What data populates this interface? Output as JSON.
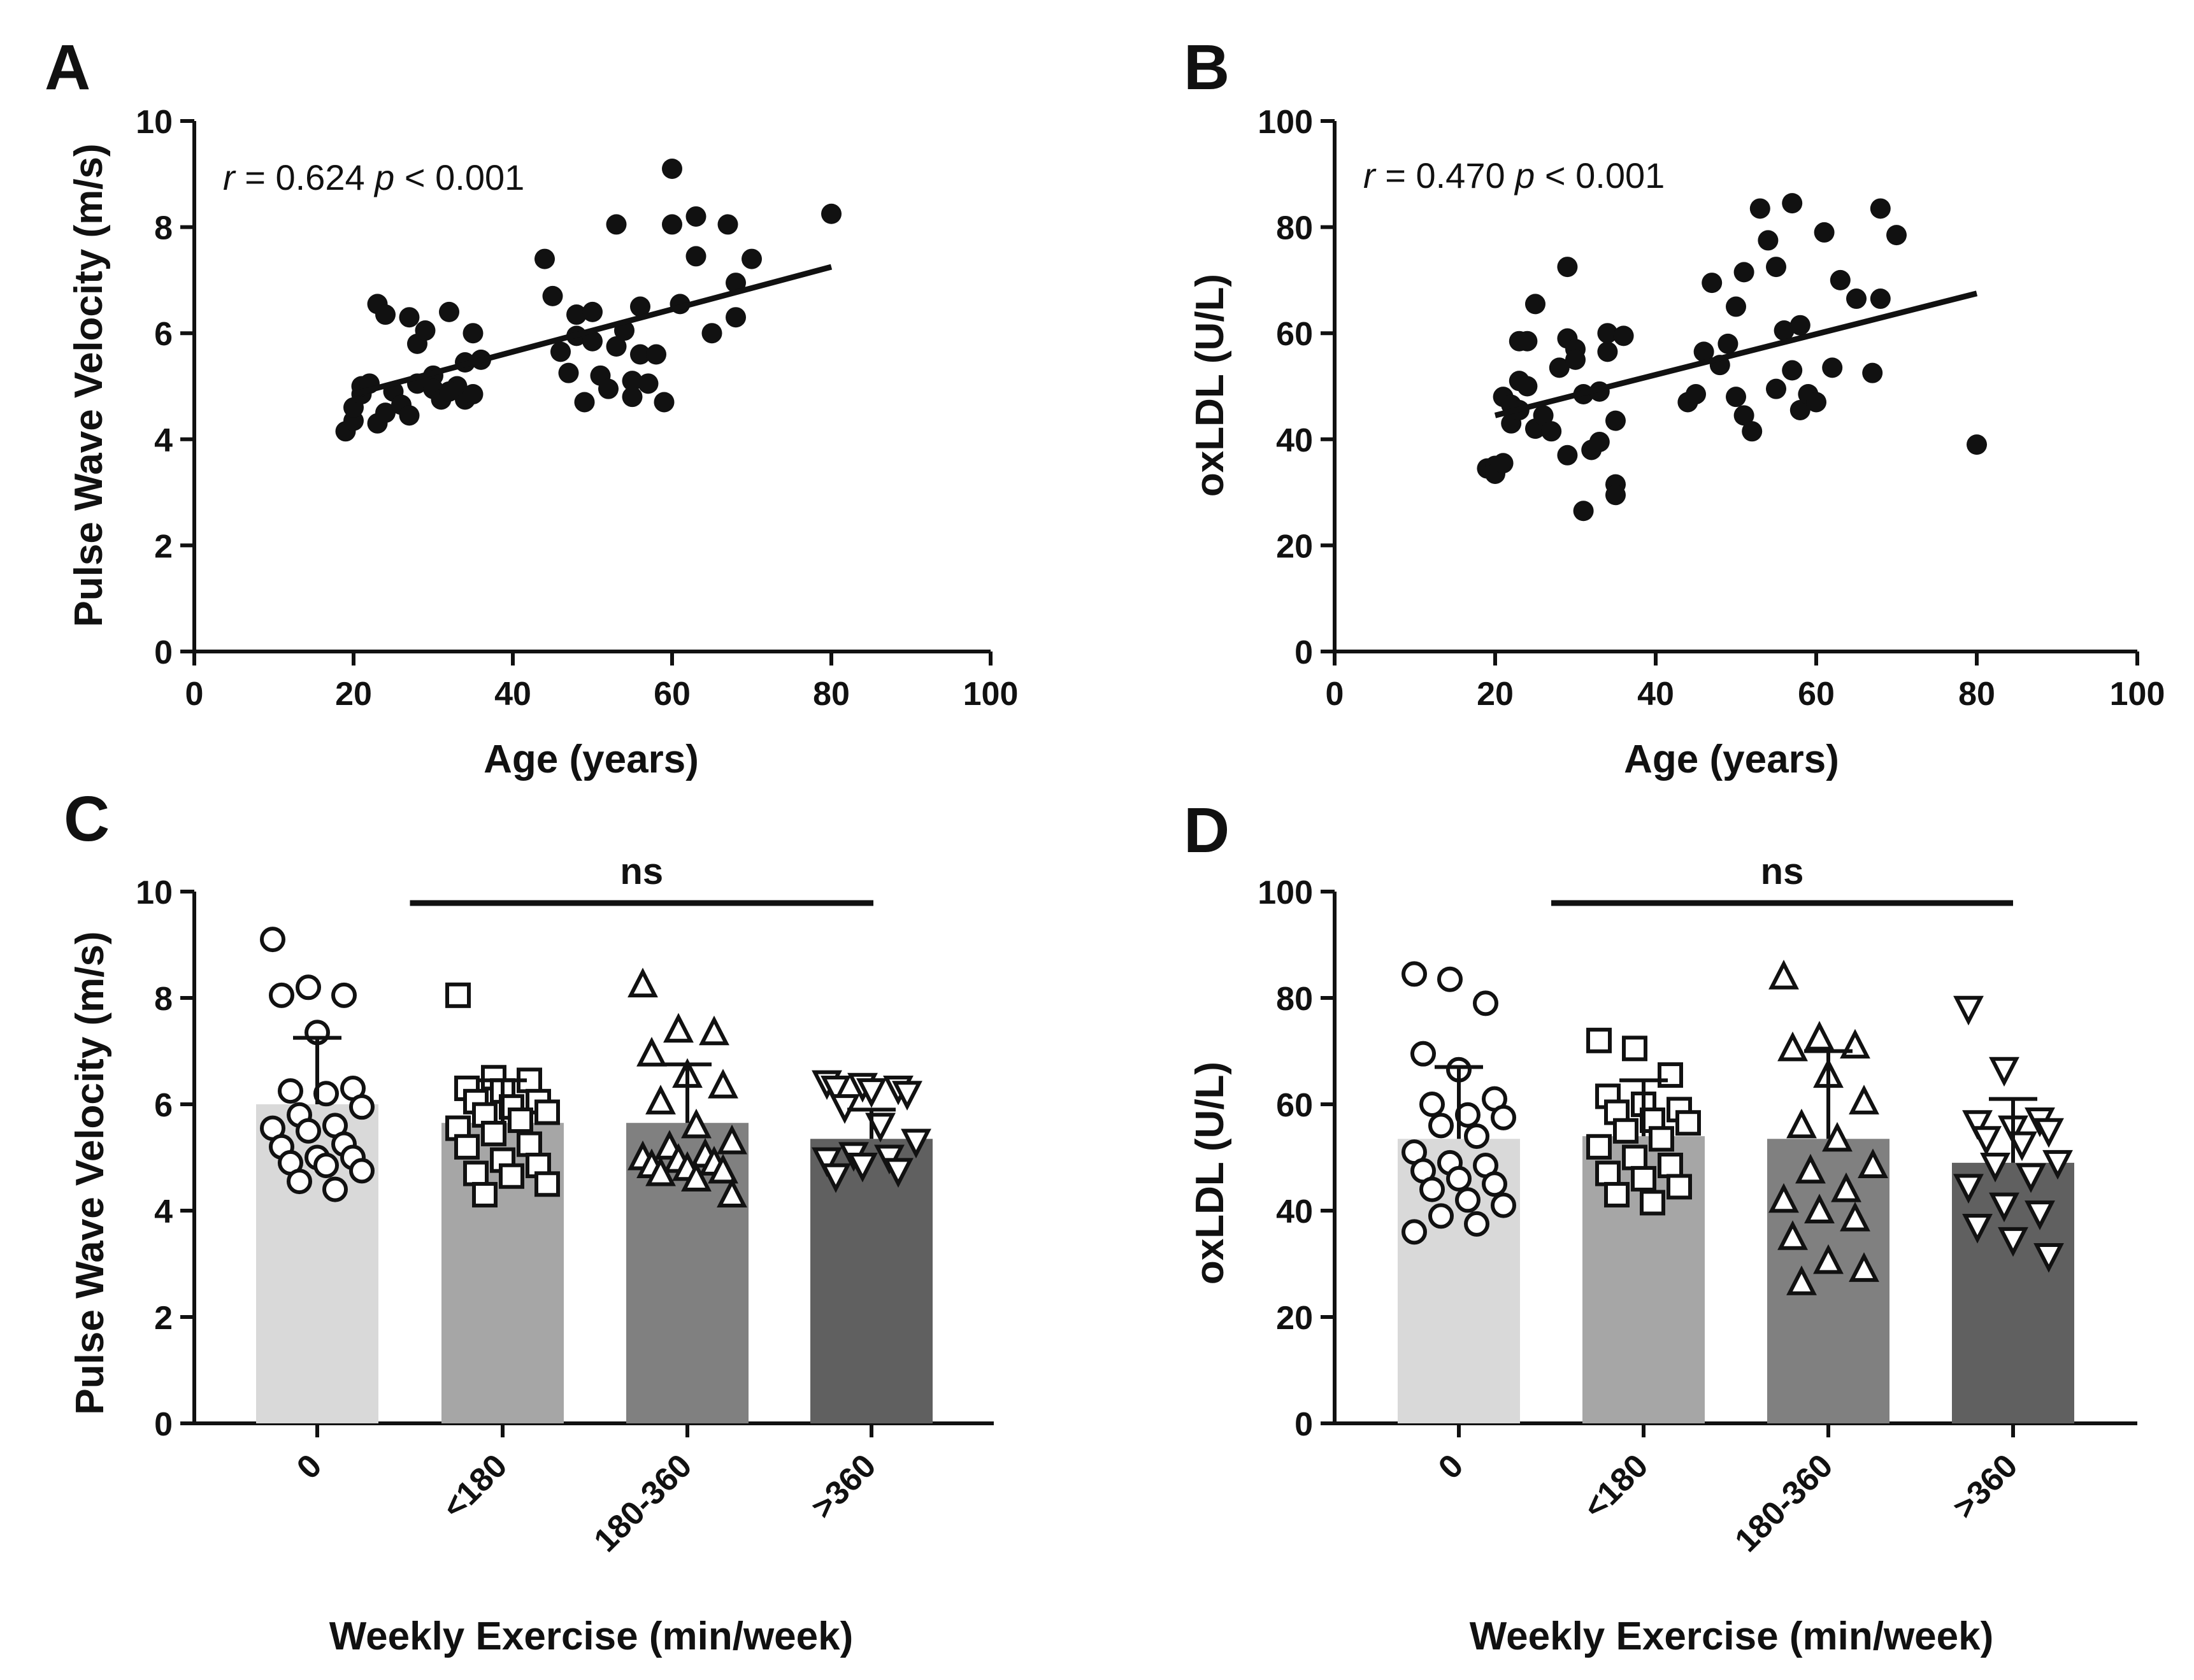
{
  "chart_data": [
    {
      "panel": "A",
      "type": "scatter",
      "xlabel": "Age (years)",
      "ylabel": "Pulse Wave Velocity (m/s)",
      "xlim": [
        0,
        100
      ],
      "ylim": [
        0,
        10
      ],
      "xticks": [
        "0",
        "20",
        "40",
        "60",
        "80",
        "100"
      ],
      "yticks": [
        "0",
        "2",
        "4",
        "6",
        "8",
        "10"
      ],
      "annotation": {
        "r_symbol": "r",
        "r_value": " = 0.624 ",
        "p_symbol": "p",
        "p_value": " < 0.001"
      },
      "regression": {
        "x": [
          20,
          80
        ],
        "y": [
          4.85,
          7.25
        ]
      },
      "points": [
        [
          19,
          4.15
        ],
        [
          20,
          4.35
        ],
        [
          20,
          4.6
        ],
        [
          21,
          4.85
        ],
        [
          21,
          5.0
        ],
        [
          22,
          5.05
        ],
        [
          23,
          6.55
        ],
        [
          23,
          4.3
        ],
        [
          24,
          6.35
        ],
        [
          24,
          4.5
        ],
        [
          25,
          4.9
        ],
        [
          26,
          4.65
        ],
        [
          27,
          4.45
        ],
        [
          27,
          6.3
        ],
        [
          28,
          5.05
        ],
        [
          28,
          5.8
        ],
        [
          29,
          6.05
        ],
        [
          30,
          5.2
        ],
        [
          30,
          4.95
        ],
        [
          31,
          4.75
        ],
        [
          32,
          6.4
        ],
        [
          33,
          5.0
        ],
        [
          34,
          4.75
        ],
        [
          34,
          5.45
        ],
        [
          35,
          4.85
        ],
        [
          35,
          6.0
        ],
        [
          36,
          5.5
        ],
        [
          44,
          7.4
        ],
        [
          45,
          6.7
        ],
        [
          46,
          5.65
        ],
        [
          47,
          5.25
        ],
        [
          48,
          6.35
        ],
        [
          48,
          5.95
        ],
        [
          49,
          4.7
        ],
        [
          50,
          6.4
        ],
        [
          50,
          5.85
        ],
        [
          51,
          5.2
        ],
        [
          52,
          4.95
        ],
        [
          53,
          8.05
        ],
        [
          53,
          5.75
        ],
        [
          54,
          6.05
        ],
        [
          55,
          5.1
        ],
        [
          55,
          4.8
        ],
        [
          56,
          6.5
        ],
        [
          56,
          5.6
        ],
        [
          57,
          5.05
        ],
        [
          58,
          5.6
        ],
        [
          59,
          4.7
        ],
        [
          60,
          9.1
        ],
        [
          60,
          8.05
        ],
        [
          61,
          6.55
        ],
        [
          63,
          8.2
        ],
        [
          63,
          7.45
        ],
        [
          65,
          6.0
        ],
        [
          67,
          8.05
        ],
        [
          68,
          6.3
        ],
        [
          68,
          6.95
        ],
        [
          70,
          7.4
        ],
        [
          80,
          8.25
        ],
        [
          32,
          4.9
        ]
      ]
    },
    {
      "panel": "B",
      "type": "scatter",
      "xlabel": "Age (years)",
      "ylabel": "oxLDL (U/L)",
      "xlim": [
        0,
        100
      ],
      "ylim": [
        0,
        100
      ],
      "xticks": [
        "0",
        "20",
        "40",
        "60",
        "80",
        "100"
      ],
      "yticks": [
        "0",
        "20",
        "40",
        "60",
        "80",
        "100"
      ],
      "annotation": {
        "r_symbol": "r",
        "r_value": " = 0.470 ",
        "p_symbol": "p",
        "p_value": " < 0.001"
      },
      "regression": {
        "x": [
          20,
          80
        ],
        "y": [
          44.5,
          67.5
        ]
      },
      "points": [
        [
          19,
          34.5
        ],
        [
          20,
          35.0
        ],
        [
          20,
          33.5
        ],
        [
          21,
          35.5
        ],
        [
          21,
          48.0
        ],
        [
          22,
          46.5
        ],
        [
          22,
          43.0
        ],
        [
          23,
          51.0
        ],
        [
          23,
          58.5
        ],
        [
          24,
          58.5
        ],
        [
          25,
          42.0
        ],
        [
          25,
          65.5
        ],
        [
          26,
          44.5
        ],
        [
          27,
          41.5
        ],
        [
          28,
          53.5
        ],
        [
          29,
          37.0
        ],
        [
          29,
          59.0
        ],
        [
          29,
          72.5
        ],
        [
          30,
          57.0
        ],
        [
          30,
          55.0
        ],
        [
          31,
          48.5
        ],
        [
          31,
          26.5
        ],
        [
          32,
          38.0
        ],
        [
          33,
          49.0
        ],
        [
          33,
          39.5
        ],
        [
          34,
          56.5
        ],
        [
          34,
          60.0
        ],
        [
          35,
          43.5
        ],
        [
          35,
          31.5
        ],
        [
          35,
          29.5
        ],
        [
          36,
          59.5
        ],
        [
          44,
          47.0
        ],
        [
          45,
          48.5
        ],
        [
          46,
          56.5
        ],
        [
          47,
          69.5
        ],
        [
          48,
          54.0
        ],
        [
          49,
          58.0
        ],
        [
          50,
          65.0
        ],
        [
          50,
          48.0
        ],
        [
          51,
          71.5
        ],
        [
          51,
          44.5
        ],
        [
          52,
          41.5
        ],
        [
          53,
          83.5
        ],
        [
          54,
          77.5
        ],
        [
          55,
          49.5
        ],
        [
          55,
          72.5
        ],
        [
          56,
          60.5
        ],
        [
          57,
          84.5
        ],
        [
          57,
          53.0
        ],
        [
          58,
          45.5
        ],
        [
          58,
          61.5
        ],
        [
          59,
          48.5
        ],
        [
          60,
          47.0
        ],
        [
          61,
          79.0
        ],
        [
          62,
          53.5
        ],
        [
          63,
          70.0
        ],
        [
          65,
          66.5
        ],
        [
          67,
          52.5
        ],
        [
          68,
          66.5
        ],
        [
          68,
          83.5
        ],
        [
          70,
          78.5
        ],
        [
          80,
          39.0
        ],
        [
          23,
          45.5
        ],
        [
          24,
          50.0
        ]
      ]
    },
    {
      "panel": "C",
      "type": "bar",
      "xlabel": "Weekly Exercise (min/week)",
      "ylabel": "Pulse Wave Velocity (m/s)",
      "ylim": [
        0,
        10
      ],
      "yticks": [
        "0",
        "2",
        "4",
        "6",
        "8",
        "10"
      ],
      "categories": [
        "0",
        "<180",
        "180-360",
        ">360"
      ],
      "values": [
        6.0,
        5.65,
        5.65,
        5.35
      ],
      "error_upper": [
        7.25,
        6.45,
        6.75,
        5.9
      ],
      "bar_colors": [
        "#d9d9d9",
        "#a6a6a6",
        "#808080",
        "#606060"
      ],
      "markers": [
        "circle",
        "square",
        "triangle-up",
        "triangle-down"
      ],
      "significance": {
        "label": "ns",
        "from": 0.5,
        "to": 3.0
      },
      "points": [
        [
          9.1,
          8.2,
          8.05,
          8.05,
          7.35,
          6.3,
          6.25,
          6.2,
          5.95,
          5.8,
          5.6,
          5.55,
          5.5,
          5.25,
          5.2,
          5.0,
          5.0,
          4.9,
          4.85,
          4.75,
          4.55,
          4.4
        ],
        [
          8.05,
          6.5,
          6.45,
          6.3,
          6.25,
          6.05,
          6.05,
          5.95,
          5.85,
          5.8,
          5.7,
          5.55,
          5.45,
          5.25,
          5.2,
          4.95,
          4.85,
          4.7,
          4.65,
          4.5,
          4.3
        ],
        [
          8.25,
          7.4,
          7.35,
          6.95,
          6.55,
          6.35,
          6.05,
          5.6,
          5.3,
          5.2,
          5.05,
          5.0,
          4.95,
          4.9,
          4.85,
          4.8,
          4.75,
          4.7,
          4.6,
          4.3
        ],
        [
          6.4,
          6.35,
          6.3,
          6.3,
          6.25,
          6.2,
          5.95,
          5.6,
          5.3,
          5.05,
          5.0,
          4.95,
          4.85,
          4.75,
          4.65
        ]
      ]
    },
    {
      "panel": "D",
      "type": "bar",
      "xlabel": "Weekly Exercise (min/week)",
      "ylabel": "oxLDL (U/L)",
      "ylim": [
        0,
        100
      ],
      "yticks": [
        "0",
        "20",
        "40",
        "60",
        "80",
        "100"
      ],
      "categories": [
        "0",
        "<180",
        "180-360",
        ">360"
      ],
      "values": [
        53.5,
        54.0,
        53.5,
        49.0
      ],
      "error_upper": [
        67.0,
        64.5,
        70.0,
        61.0
      ],
      "bar_colors": [
        "#d9d9d9",
        "#a6a6a6",
        "#808080",
        "#606060"
      ],
      "markers": [
        "circle",
        "square",
        "triangle-up",
        "triangle-down"
      ],
      "significance": {
        "label": "ns",
        "from": 0.5,
        "to": 3.0
      },
      "points": [
        [
          84.5,
          83.5,
          79.0,
          69.5,
          66.5,
          61.0,
          60.0,
          58.0,
          57.5,
          56.0,
          54.0,
          51.0,
          49.0,
          48.5,
          47.5,
          46.0,
          45.0,
          44.0,
          42.0,
          41.0,
          39.0,
          37.5,
          36.0
        ],
        [
          72.0,
          70.5,
          65.5,
          61.5,
          60.0,
          59.0,
          58.5,
          57.0,
          56.5,
          55.0,
          53.5,
          52.0,
          50.0,
          48.5,
          47.0,
          46.0,
          44.5,
          43.0,
          41.5
        ],
        [
          84.0,
          72.5,
          71.0,
          70.5,
          65.5,
          60.5,
          56.0,
          53.5,
          48.5,
          47.5,
          44.0,
          42.0,
          40.0,
          38.5,
          35.0,
          30.5,
          29.0,
          26.5
        ],
        [
          78.0,
          66.5,
          57.0,
          56.5,
          55.5,
          55.0,
          53.5,
          52.5,
          49.0,
          48.5,
          46.5,
          44.5,
          41.0,
          39.5,
          37.0,
          34.5,
          31.5
        ]
      ]
    }
  ]
}
